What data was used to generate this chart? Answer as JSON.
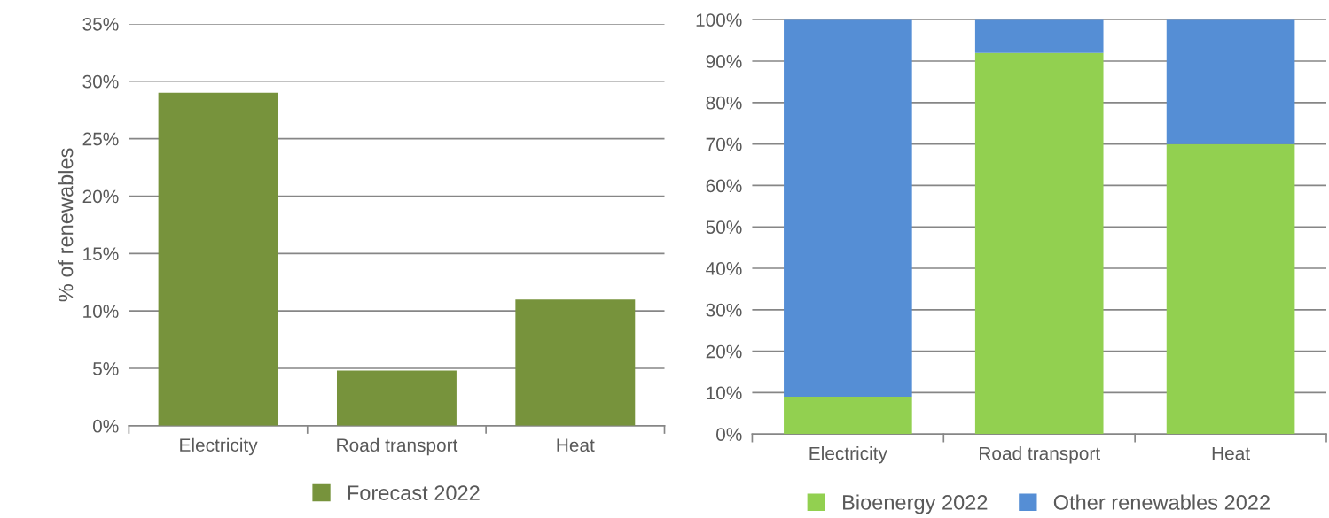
{
  "chart_data": [
    {
      "type": "bar",
      "ylabel": "% of renewables",
      "categories": [
        "Electricity",
        "Road transport",
        "Heat"
      ],
      "series": [
        {
          "name": "Forecast 2022",
          "color": "#77933c",
          "values": [
            29,
            4.8,
            11
          ]
        }
      ],
      "ylim": [
        0,
        35
      ],
      "yticks": [
        {
          "value": 0,
          "label": "0%"
        },
        {
          "value": 5,
          "label": "5%"
        },
        {
          "value": 10,
          "label": "10%"
        },
        {
          "value": 15,
          "label": "15%"
        },
        {
          "value": 20,
          "label": "20%"
        },
        {
          "value": 25,
          "label": "25%"
        },
        {
          "value": 30,
          "label": "30%"
        },
        {
          "value": 35,
          "label": "35%"
        }
      ],
      "grid": "y",
      "legend": "bottom"
    },
    {
      "type": "bar",
      "stacked": true,
      "categories": [
        "Electricity",
        "Road transport",
        "Heat"
      ],
      "series": [
        {
          "name": "Bioenergy 2022",
          "color": "#92d050",
          "values": [
            9,
            92,
            70
          ]
        },
        {
          "name": "Other renewables 2022",
          "color": "#558ed5",
          "values": [
            91,
            8,
            30
          ]
        }
      ],
      "ylim": [
        0,
        100
      ],
      "yticks": [
        {
          "value": 0,
          "label": "0%"
        },
        {
          "value": 10,
          "label": "10%"
        },
        {
          "value": 20,
          "label": "20%"
        },
        {
          "value": 30,
          "label": "30%"
        },
        {
          "value": 40,
          "label": "40%"
        },
        {
          "value": 50,
          "label": "50%"
        },
        {
          "value": 60,
          "label": "60%"
        },
        {
          "value": 70,
          "label": "70%"
        },
        {
          "value": 80,
          "label": "80%"
        },
        {
          "value": 90,
          "label": "90%"
        },
        {
          "value": 100,
          "label": "100%"
        }
      ],
      "grid": "y",
      "legend": "bottom"
    }
  ]
}
